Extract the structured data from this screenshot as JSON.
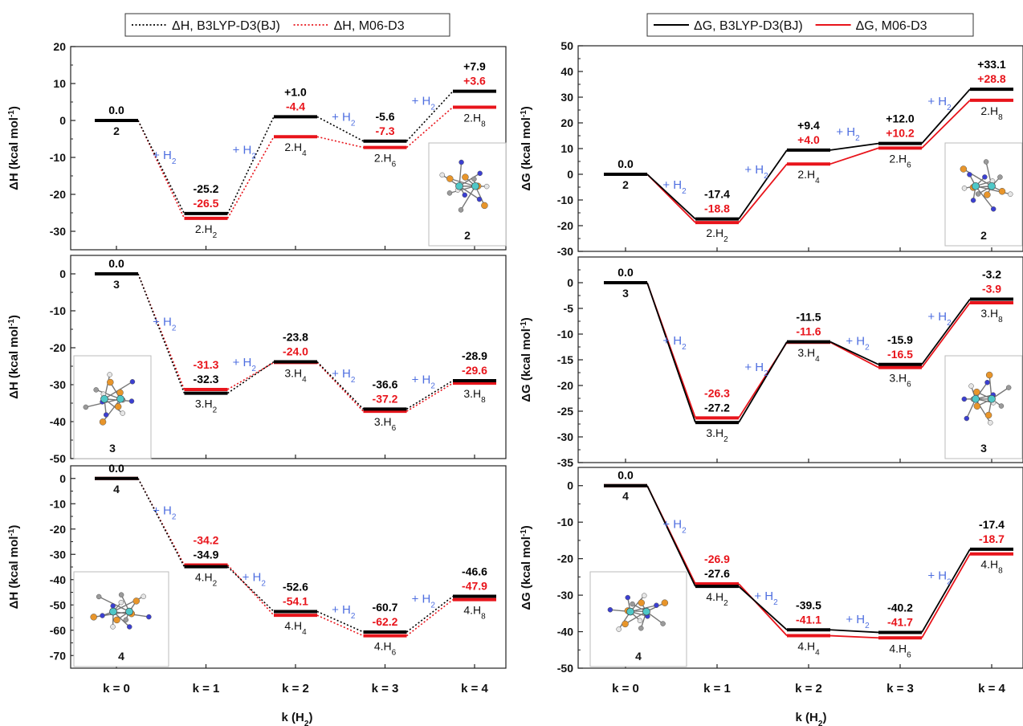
{
  "colors": {
    "b3lyp": "#000000",
    "m06": "#e8141b",
    "h2_label": "#4f6fe0",
    "frame": "#222222"
  },
  "legend_left": [
    {
      "label": "ΔH, B3LYP-D3(BJ)",
      "style": "dotted",
      "color": "#000000"
    },
    {
      "label": "ΔH, M06-D3",
      "style": "dotted",
      "color": "#e8141b"
    }
  ],
  "legend_right": [
    {
      "label": "ΔG, B3LYP-D3(BJ)",
      "style": "solid",
      "color": "#000000"
    },
    {
      "label": "ΔG, M06-D3",
      "style": "solid",
      "color": "#e8141b"
    }
  ],
  "xlabel": "k (H₂)",
  "xtick_labels": [
    "k = 0",
    "k = 1",
    "k = 2",
    "k = 3",
    "k = 4"
  ],
  "h2_text": "+ H₂",
  "structure_inset_names": [
    "2",
    "3",
    "4"
  ],
  "chart_data": [
    {
      "type": "line",
      "panel": "left-top",
      "quantity": "ΔH",
      "ylabel": "ΔH (kcal mol⁻¹)",
      "ylim": [
        -35,
        20
      ],
      "yticks": [
        20,
        10,
        0,
        -10,
        -20,
        -30
      ],
      "x": [
        "k = 0",
        "k = 1",
        "k = 2",
        "k = 3",
        "k = 4"
      ],
      "species": [
        "2",
        "2.H₂",
        "2.H₄",
        "2.H₆",
        "2.H₈"
      ],
      "series": [
        {
          "name": "ΔH, B3LYP-D3(BJ)",
          "values": [
            0.0,
            -25.2,
            1.0,
            -5.6,
            7.9
          ]
        },
        {
          "name": "ΔH, M06-D3",
          "values": [
            0.0,
            -26.5,
            -4.4,
            -7.3,
            3.6
          ]
        }
      ],
      "labels_b3lyp": [
        "0.0",
        "-25.2",
        "+1.0",
        "-5.6",
        "+7.9"
      ],
      "labels_m06": [
        "",
        "-26.5",
        "-4.4",
        "-7.3",
        "+3.6"
      ],
      "inset": "2"
    },
    {
      "type": "line",
      "panel": "left-middle",
      "quantity": "ΔH",
      "ylabel": "ΔH (kcal mol⁻¹)",
      "ylim": [
        -50,
        5
      ],
      "yticks": [
        0,
        -10,
        -20,
        -30,
        -40,
        -50
      ],
      "x": [
        "k = 0",
        "k = 1",
        "k = 2",
        "k = 3",
        "k = 4"
      ],
      "species": [
        "3",
        "3.H₂",
        "3.H₄",
        "3.H₆",
        "3.H₈"
      ],
      "series": [
        {
          "name": "ΔH, B3LYP-D3(BJ)",
          "values": [
            0.0,
            -32.3,
            -23.8,
            -36.6,
            -28.9
          ]
        },
        {
          "name": "ΔH, M06-D3",
          "values": [
            0.0,
            -31.3,
            -24.0,
            -37.2,
            -29.6
          ]
        }
      ],
      "labels_b3lyp": [
        "0.0",
        "-32.3",
        "-23.8",
        "-36.6",
        "-28.9"
      ],
      "labels_m06": [
        "",
        "-31.3",
        "-24.0",
        "-37.2",
        "-29.6"
      ],
      "inset": "3"
    },
    {
      "type": "line",
      "panel": "left-bottom",
      "quantity": "ΔH",
      "ylabel": "ΔH (kcal mol⁻¹)",
      "ylim": [
        -75,
        5
      ],
      "yticks": [
        0,
        -10,
        -20,
        -30,
        -40,
        -50,
        -60,
        -70
      ],
      "x": [
        "k = 0",
        "k = 1",
        "k = 2",
        "k = 3",
        "k = 4"
      ],
      "species": [
        "4",
        "4.H₂",
        "4.H₄",
        "4.H₆",
        "4.H₈"
      ],
      "series": [
        {
          "name": "ΔH, B3LYP-D3(BJ)",
          "values": [
            0.0,
            -34.9,
            -52.6,
            -60.7,
            -46.6
          ]
        },
        {
          "name": "ΔH, M06-D3",
          "values": [
            0.0,
            -34.2,
            -54.1,
            -62.2,
            -47.9
          ]
        }
      ],
      "labels_b3lyp": [
        "0.0",
        "-34.9",
        "-52.6",
        "-60.7",
        "-46.6"
      ],
      "labels_m06": [
        "",
        "-34.2",
        "-54.1",
        "-62.2",
        "-47.9"
      ],
      "inset": "4"
    },
    {
      "type": "line",
      "panel": "right-top",
      "quantity": "ΔG",
      "ylabel": "ΔG (kcal mol⁻¹)",
      "ylim": [
        -30,
        50
      ],
      "yticks": [
        50,
        40,
        30,
        20,
        10,
        0,
        -10,
        -20,
        -30
      ],
      "x": [
        "k = 0",
        "k = 1",
        "k = 2",
        "k = 3",
        "k = 4"
      ],
      "species": [
        "2",
        "2.H₂",
        "2.H₄",
        "2.H₆",
        "2.H₈"
      ],
      "series": [
        {
          "name": "ΔG, B3LYP-D3(BJ)",
          "values": [
            0.0,
            -17.4,
            9.4,
            12.0,
            33.1
          ]
        },
        {
          "name": "ΔG, M06-D3",
          "values": [
            0.0,
            -18.8,
            4.0,
            10.2,
            28.8
          ]
        }
      ],
      "labels_b3lyp": [
        "0.0",
        "-17.4",
        "+9.4",
        "+12.0",
        "+33.1"
      ],
      "labels_m06": [
        "",
        "-18.8",
        "+4.0",
        "+10.2",
        "+28.8"
      ],
      "inset": "2"
    },
    {
      "type": "line",
      "panel": "right-middle",
      "quantity": "ΔG",
      "ylabel": "ΔG (kcal mol⁻¹)",
      "ylim": [
        -35,
        5
      ],
      "yticks": [
        0,
        -5,
        -10,
        -15,
        -20,
        -25,
        -30,
        -35
      ],
      "x": [
        "k = 0",
        "k = 1",
        "k = 2",
        "k = 3",
        "k = 4"
      ],
      "species": [
        "3",
        "3.H₂",
        "3.H₄",
        "3.H₆",
        "3.H₈"
      ],
      "series": [
        {
          "name": "ΔG, B3LYP-D3(BJ)",
          "values": [
            0.0,
            -27.2,
            -11.5,
            -15.9,
            -3.2
          ]
        },
        {
          "name": "ΔG, M06-D3",
          "values": [
            0.0,
            -26.3,
            -11.6,
            -16.5,
            -3.9
          ]
        }
      ],
      "labels_b3lyp": [
        "0.0",
        "-27.2",
        "-11.5",
        "-15.9",
        "-3.2"
      ],
      "labels_m06": [
        "",
        "-26.3",
        "-11.6",
        "-16.5",
        "-3.9"
      ],
      "inset": "3"
    },
    {
      "type": "line",
      "panel": "right-bottom",
      "quantity": "ΔG",
      "ylabel": "ΔG (kcal mol⁻¹)",
      "ylim": [
        -50,
        5
      ],
      "yticks": [
        0,
        -10,
        -20,
        -30,
        -40,
        -50
      ],
      "x": [
        "k = 0",
        "k = 1",
        "k = 2",
        "k = 3",
        "k = 4"
      ],
      "species": [
        "4",
        "4.H₂",
        "4.H₄",
        "4.H₆",
        "4.H₈"
      ],
      "series": [
        {
          "name": "ΔG, B3LYP-D3(BJ)",
          "values": [
            0.0,
            -27.6,
            -39.5,
            -40.2,
            -17.4
          ]
        },
        {
          "name": "ΔG, M06-D3",
          "values": [
            0.0,
            -26.9,
            -41.1,
            -41.7,
            -18.7
          ]
        }
      ],
      "labels_b3lyp": [
        "0.0",
        "-27.6",
        "-39.5",
        "-40.2",
        "-17.4"
      ],
      "labels_m06": [
        "",
        "-26.9",
        "-41.1",
        "-41.7",
        "-18.7"
      ],
      "inset": "4"
    }
  ]
}
